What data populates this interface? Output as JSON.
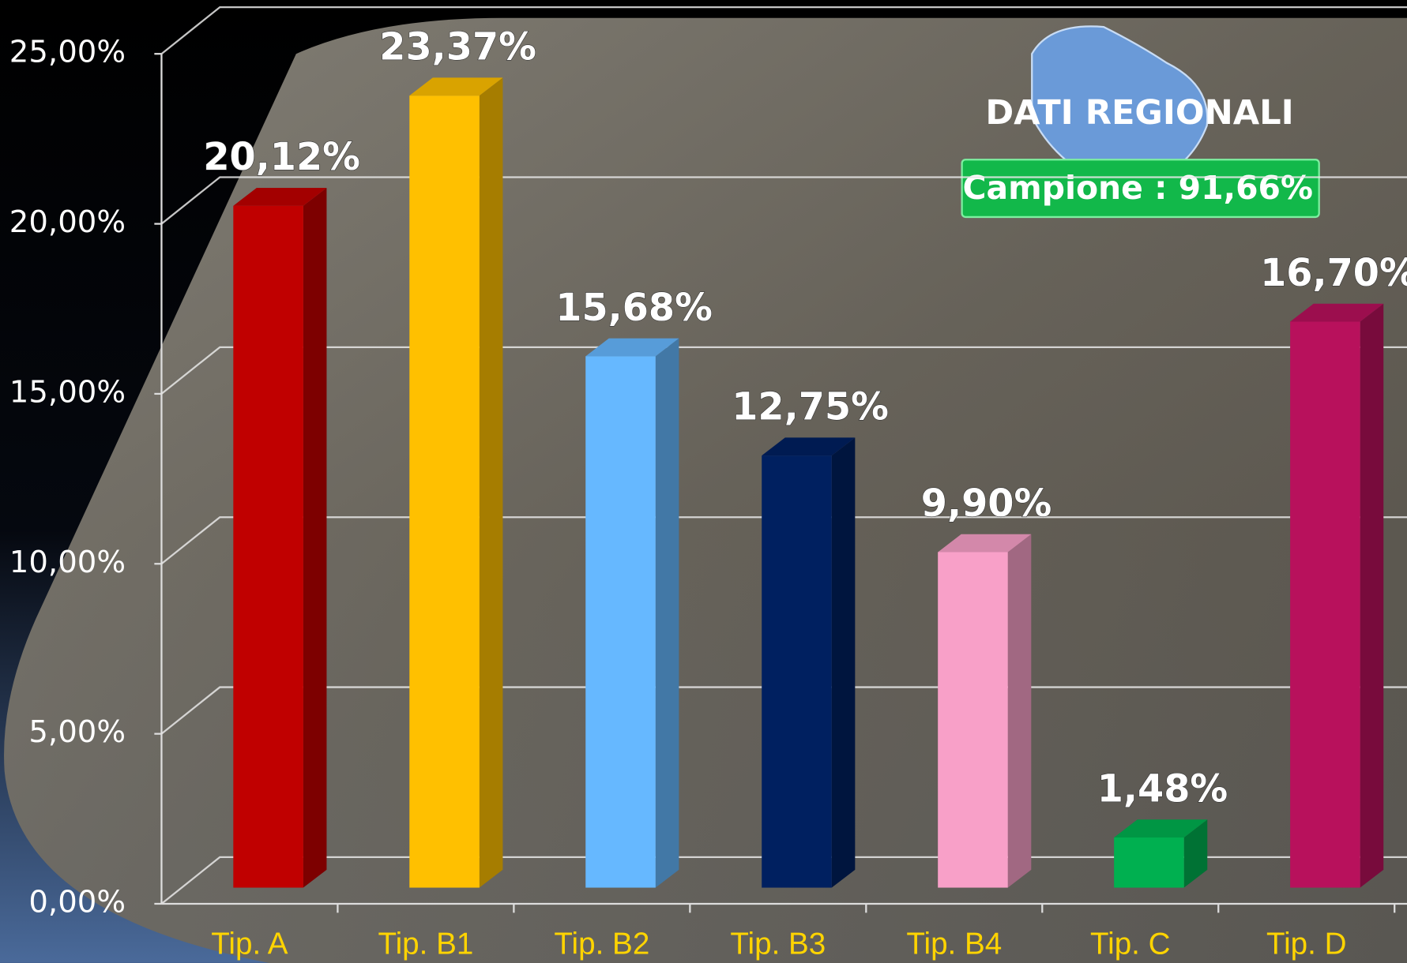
{
  "chart_data": {
    "type": "bar3d",
    "annotations": [
      "DATI REGIONALI",
      "Campione : 91,66%"
    ],
    "categories": [
      "Tip. A",
      "Tip. B1",
      "Tip. B2",
      "Tip. B3",
      "Tip. B4",
      "Tip. C",
      "Tip. D"
    ],
    "values": [
      20.12,
      23.37,
      15.68,
      12.75,
      9.9,
      1.48,
      16.7
    ],
    "value_labels": [
      "20,12%",
      "23,37%",
      "15,68%",
      "12,75%",
      "9,90%",
      "1,48%",
      "16,70%"
    ],
    "colors": [
      "#c00000",
      "#ffc000",
      "#66b8ff",
      "#002060",
      "#f8a0c8",
      "#00b050",
      "#b8115c"
    ],
    "ylim": [
      0,
      25
    ],
    "yticks": [
      {
        "value": 0,
        "label": "0,00%"
      },
      {
        "value": 5,
        "label": "5,00%"
      },
      {
        "value": 10,
        "label": "10,00%"
      },
      {
        "value": 15,
        "label": "15,00%"
      },
      {
        "value": 20,
        "label": "20,00%"
      },
      {
        "value": 25,
        "label": "25,00%"
      }
    ],
    "grid": true
  }
}
